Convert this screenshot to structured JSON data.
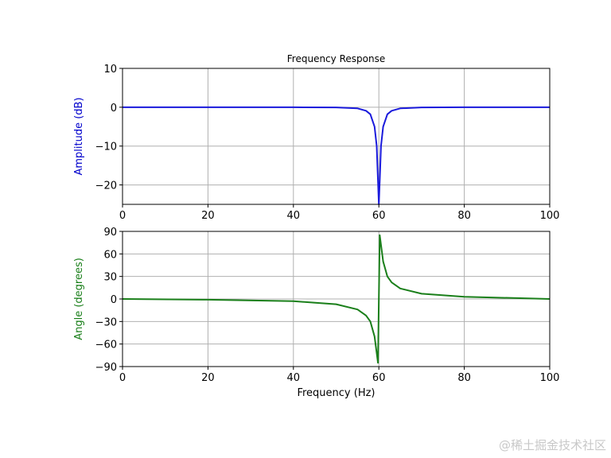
{
  "chart_data": [
    {
      "type": "line",
      "title": "Frequency Response",
      "xlabel": "",
      "ylabel": "Amplitude (dB)",
      "ylabel_color": "#0000cc",
      "line_color": "#1a1adc",
      "xlim": [
        0,
        100
      ],
      "ylim": [
        -25,
        10
      ],
      "xticks": [
        0,
        20,
        40,
        60,
        80,
        100
      ],
      "yticks": [
        10,
        0,
        -10,
        -20
      ],
      "grid": true,
      "x": [
        0,
        20,
        40,
        50,
        55,
        57,
        58,
        59,
        59.5,
        60,
        60.5,
        61,
        62,
        63,
        65,
        70,
        80,
        100
      ],
      "values": [
        0,
        0,
        0,
        -0.05,
        -0.3,
        -0.9,
        -1.8,
        -5,
        -10,
        -25,
        -10,
        -5,
        -1.8,
        -0.9,
        -0.3,
        -0.05,
        0,
        0
      ]
    },
    {
      "type": "line",
      "title": "",
      "xlabel": "Frequency (Hz)",
      "ylabel": "Angle (degrees)",
      "ylabel_color": "#1a7f1a",
      "line_color": "#1a7f1a",
      "xlim": [
        0,
        100
      ],
      "ylim": [
        -90,
        90
      ],
      "xticks": [
        0,
        20,
        40,
        60,
        80,
        100
      ],
      "yticks": [
        90,
        60,
        30,
        0,
        -30,
        -60,
        -90
      ],
      "grid": true,
      "x": [
        0,
        20,
        40,
        50,
        55,
        57,
        58,
        59,
        59.8,
        60,
        60.2,
        61,
        62,
        63,
        65,
        70,
        80,
        100
      ],
      "values": [
        0,
        -1,
        -3,
        -7,
        -14,
        -22,
        -30,
        -50,
        -85,
        0,
        85,
        50,
        30,
        22,
        14,
        7,
        3,
        0
      ]
    }
  ],
  "watermark": "@稀土掘金技术社区"
}
